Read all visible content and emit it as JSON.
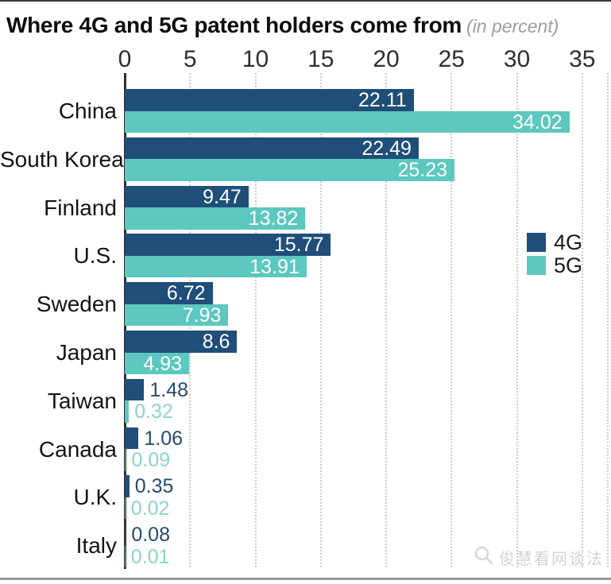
{
  "page": {
    "watermark_text": "俊慧看网谈法"
  },
  "chart_data": {
    "type": "bar",
    "orientation": "horizontal",
    "title": "Where 4G and 5G patent holders come from",
    "subtitle": "(in percent)",
    "categories": [
      "China",
      "South Korea",
      "Finland",
      "U.S.",
      "Sweden",
      "Japan",
      "Taiwan",
      "Canada",
      "U.K.",
      "Italy"
    ],
    "series": [
      {
        "name": "4G",
        "color": "#1F4E79",
        "values": [
          22.11,
          22.49,
          9.47,
          15.77,
          6.72,
          8.6,
          1.48,
          1.06,
          0.35,
          0.08
        ]
      },
      {
        "name": "5G",
        "color": "#5CC8BF",
        "values": [
          34.02,
          25.23,
          13.82,
          13.91,
          7.93,
          4.93,
          0.32,
          0.09,
          0.02,
          0.01
        ]
      }
    ],
    "xlim": [
      0,
      35
    ],
    "xticks": [
      0,
      5,
      10,
      15,
      20,
      25,
      30,
      35
    ],
    "grid": "dotted-vertical",
    "legend_position": "middle-right",
    "value_labels": "on",
    "colors": {
      "label_inside": "#FFFFFF",
      "label_outside_4g": "#254A6D",
      "label_outside_5g": "#8CD3CC",
      "grid": "#CBCBCB",
      "axis_line": "#2E2E2E",
      "tick_text": "#2F2F2F",
      "category_text": "#141414"
    }
  }
}
